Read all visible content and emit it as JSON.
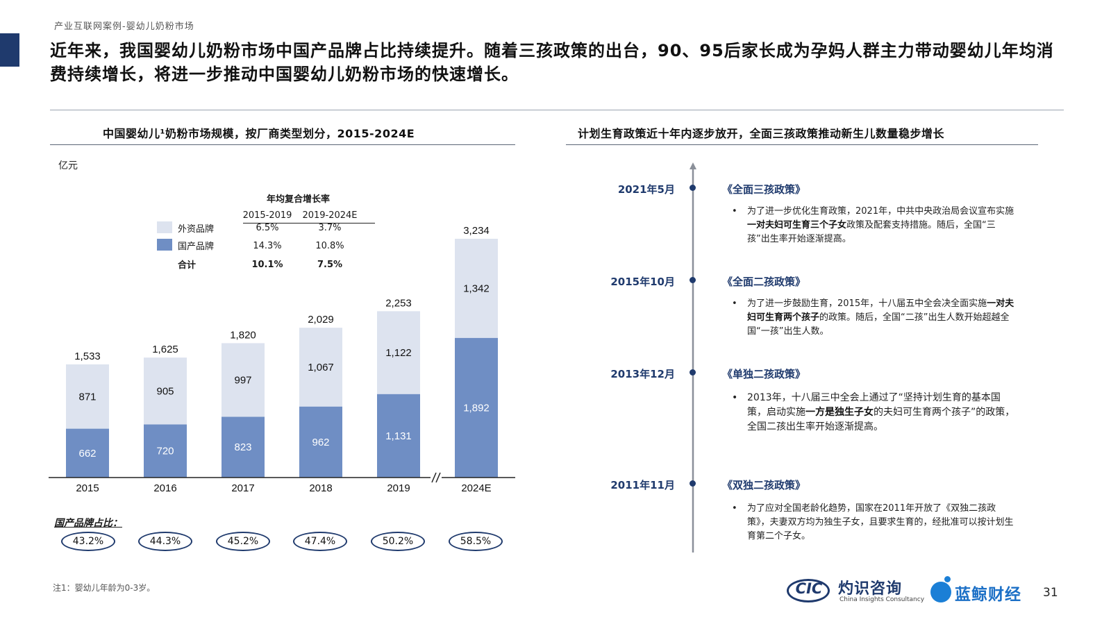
{
  "header": {
    "breadcrumb": "产业互联网案例-婴幼儿奶粉市场",
    "headline": "近年来，我国婴幼儿奶粉市场中国产品牌占比持续提升。随着三孩政策的出台，90、95后家长成为孕妈人群主力带动婴幼儿年均消费持续增长，将进一步推动中国婴幼儿奶粉市场的快速增长。"
  },
  "left_panel": {
    "title": "中国婴幼儿¹奶粉市场规模，按厂商类型划分，2015-2024E",
    "unit": "亿元",
    "cagr_table": {
      "caption": "年均复合增长率",
      "columns": [
        "2015-2019",
        "2019-2024E"
      ],
      "rows": [
        {
          "label": "外资品牌",
          "values": [
            "6.5%",
            "3.7%"
          ]
        },
        {
          "label": "国产品牌",
          "values": [
            "14.3%",
            "10.8%"
          ]
        },
        {
          "label": "合计",
          "values": [
            "10.1%",
            "7.5%"
          ]
        }
      ]
    },
    "share_label": "国产品牌占比：",
    "shares": [
      "43.2%",
      "44.3%",
      "45.2%",
      "47.4%",
      "50.2%",
      "58.5%"
    ],
    "footnote": "注1：婴幼儿年龄为0-3岁。"
  },
  "chart_data": {
    "type": "bar",
    "stacked": true,
    "title": "中国婴幼儿¹奶粉市场规模，按厂商类型划分，2015-2024E",
    "ylabel": "亿元",
    "categories": [
      "2015",
      "2016",
      "2017",
      "2018",
      "2019",
      "2024E"
    ],
    "series": [
      {
        "name": "国产品牌",
        "color": "#6f8ec4",
        "values": [
          662,
          720,
          823,
          962,
          1131,
          1892
        ],
        "labels": [
          "662",
          "720",
          "823",
          "962",
          "1,131",
          "1,892"
        ]
      },
      {
        "name": "外资品牌",
        "color": "#dde3ef",
        "values": [
          871,
          905,
          997,
          1067,
          1122,
          1342
        ],
        "labels": [
          "871",
          "905",
          "997",
          "1,067",
          "1,122",
          "1,342"
        ]
      }
    ],
    "totals": [
      1533,
      1625,
      1820,
      2029,
      2253,
      3234
    ],
    "total_labels": [
      "1,533",
      "1,625",
      "1,820",
      "2,029",
      "2,253",
      "3,234"
    ],
    "axis_break_between": [
      "2019",
      "2024E"
    ],
    "ylim": [
      0,
      3300
    ],
    "grid": false
  },
  "right_panel": {
    "title": "计划生育政策近十年内逐步放开，全面三孩政策推动新生儿数量稳步增长",
    "events": [
      {
        "date": "2021年5月",
        "policy": "《全面三孩政策》",
        "desc_pre": "为了进一步优化生育政策，2021年，中共中央政治局会议宣布实施",
        "desc_bold": "一对夫妇可生育三个子女",
        "desc_post": "政策及配套支持措施。随后，全国“三孩”出生率开始逐渐提高。"
      },
      {
        "date": "2015年10月",
        "policy": "《全面二孩政策》",
        "desc_pre": "为了进一步鼓励生育，2015年，十八届五中全会决全面实施",
        "desc_bold": "一对夫妇可生育两个孩子",
        "desc_post": "的政策。随后，全国“二孩”出生人数开始超越全国“一孩”出生人数。"
      },
      {
        "date": "2013年12月",
        "policy": "《单独二孩政策》",
        "desc_pre": "2013年，十八届三中全会上通过了“坚持计划生育的基本国策，启动实施",
        "desc_bold": "一方是独生子女",
        "desc_post": "的夫妇可生育两个孩子”的政策，全国二孩出生率开始逐渐提高。"
      },
      {
        "date": "2011年11月",
        "policy": "《双独二孩政策》",
        "desc_pre": "为了应对全国老龄化趋势，国家在2011年开放了《双独二孩政策》，夫妻双方均为独生子女，且要求生育的，经批准可以按计划生育第二个子女。",
        "desc_bold": "",
        "desc_post": ""
      }
    ]
  },
  "footer": {
    "cic_mark": "CIC",
    "cic_name": "灼识咨询",
    "cic_en": "China Insights Consultancy",
    "partner_name": "蓝鲸财经",
    "page_number": "31"
  }
}
